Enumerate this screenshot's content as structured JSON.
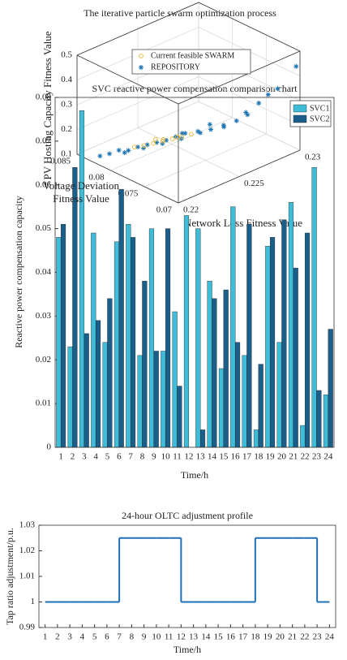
{
  "chart_data": [
    {
      "type": "scatter3d",
      "title": "The iterative particle swarm optimization process",
      "xlabel": "Network Loss Fitness Value",
      "ylabel": "Voltage Deviation Fitness Value",
      "zlabel": "PV Hosting Capacity Fitness Value",
      "xlim": [
        0.22,
        0.23
      ],
      "xticks": [
        0.22,
        0.225,
        0.23
      ],
      "ylim": [
        0.07,
        0.085
      ],
      "yticks": [
        0.07,
        0.075,
        0.08,
        0.085
      ],
      "zlim": [
        0.1,
        0.5
      ],
      "zticks": [
        0.1,
        0.2,
        0.3,
        0.4,
        0.5
      ],
      "grid": true,
      "legend": "top",
      "series": [
        {
          "name": "Current feasible SWARM",
          "color": "#e8b62c",
          "marker": "circle",
          "x": [
            0.223,
            0.2235,
            0.224,
            0.2245,
            0.225,
            0.2225,
            0.2255,
            0.2242,
            0.2238,
            0.2248
          ],
          "y": [
            0.0805,
            0.08,
            0.0795,
            0.079,
            0.0785,
            0.081,
            0.078,
            0.0798,
            0.0802,
            0.0788
          ],
          "z": [
            0.13,
            0.135,
            0.14,
            0.145,
            0.15,
            0.128,
            0.155,
            0.138,
            0.142,
            0.148
          ]
        },
        {
          "name": "REPOSITORY",
          "color": "#1f77b4",
          "marker": "star",
          "x": [
            0.2215,
            0.222,
            0.2225,
            0.223,
            0.2235,
            0.224,
            0.2245,
            0.225,
            0.2255,
            0.226,
            0.2265,
            0.227,
            0.2275,
            0.228,
            0.2285,
            0.229,
            0.2298,
            0.221,
            0.2205,
            0.2218,
            0.2228,
            0.2238,
            0.2248,
            0.2258,
            0.2268,
            0.2278,
            0.2262,
            0.2252
          ],
          "y": [
            0.0815,
            0.081,
            0.0805,
            0.08,
            0.0795,
            0.079,
            0.0785,
            0.078,
            0.077,
            0.076,
            0.075,
            0.074,
            0.0735,
            0.0725,
            0.072,
            0.0715,
            0.0702,
            0.082,
            0.0825,
            0.0812,
            0.0802,
            0.0792,
            0.0782,
            0.0772,
            0.0755,
            0.0738,
            0.0765,
            0.0788
          ],
          "z": [
            0.13,
            0.125,
            0.135,
            0.14,
            0.145,
            0.15,
            0.16,
            0.17,
            0.18,
            0.19,
            0.21,
            0.23,
            0.26,
            0.3,
            0.33,
            0.35,
            0.44,
            0.12,
            0.115,
            0.118,
            0.128,
            0.138,
            0.15,
            0.165,
            0.19,
            0.24,
            0.2,
            0.155
          ]
        }
      ]
    },
    {
      "type": "bar",
      "title": "SVC reactive power compensation comparison chart",
      "xlabel": "Time/h",
      "ylabel": "Reactive power compensation capacity",
      "categories": [
        "1",
        "2",
        "3",
        "4",
        "5",
        "6",
        "7",
        "8",
        "9",
        "10",
        "11",
        "12",
        "13",
        "14",
        "15",
        "16",
        "17",
        "18",
        "19",
        "20",
        "21",
        "22",
        "23",
        "24"
      ],
      "ylim": [
        0,
        0.08
      ],
      "yticks": [
        0,
        0.01,
        0.02,
        0.03,
        0.04,
        0.05,
        0.06,
        0.07,
        0.08
      ],
      "legend": "top-right",
      "series": [
        {
          "name": "SVC1",
          "color": "#3fbcd8",
          "values": [
            0.048,
            0.023,
            0.077,
            0.049,
            0.024,
            0.047,
            0.051,
            0.021,
            0.05,
            0.022,
            0.031,
            0.053,
            0.05,
            0.038,
            0.018,
            0.055,
            0.021,
            0.004,
            0.046,
            0.024,
            0.056,
            0.005,
            0.064,
            0.012
          ]
        },
        {
          "name": "SVC2",
          "color": "#1a5e8a",
          "values": [
            0.051,
            0.064,
            0.026,
            0.029,
            0.034,
            0.059,
            0.048,
            0.038,
            0.022,
            0.05,
            0.014,
            0,
            0.004,
            0.034,
            0.036,
            0.024,
            0.051,
            0.019,
            0.048,
            0.052,
            0.041,
            0.049,
            0.013,
            0.027
          ]
        }
      ]
    },
    {
      "type": "line",
      "step": "post",
      "title": "24-hour OLTC adjustment profile",
      "xlabel": "Time/h",
      "ylabel": "Tap ratio adjustment/p.u.",
      "x": [
        1,
        2,
        3,
        4,
        5,
        6,
        7,
        8,
        9,
        10,
        11,
        12,
        13,
        14,
        15,
        16,
        17,
        18,
        19,
        20,
        21,
        22,
        23,
        24
      ],
      "values": [
        1,
        1,
        1,
        1,
        1,
        1,
        1.025,
        1.025,
        1.025,
        1.025,
        1.025,
        1,
        1,
        1,
        1,
        1,
        1,
        1.025,
        1.025,
        1.025,
        1.025,
        1.025,
        1,
        1
      ],
      "color": "#1f6fb4",
      "xlim": [
        0.5,
        24.5
      ],
      "xticks": [
        1,
        2,
        3,
        4,
        5,
        6,
        7,
        8,
        9,
        10,
        11,
        12,
        13,
        14,
        15,
        16,
        17,
        18,
        19,
        20,
        21,
        22,
        23,
        24
      ],
      "ylim": [
        0.99,
        1.03
      ],
      "yticks": [
        0.99,
        1,
        1.01,
        1.02,
        1.03
      ]
    }
  ]
}
